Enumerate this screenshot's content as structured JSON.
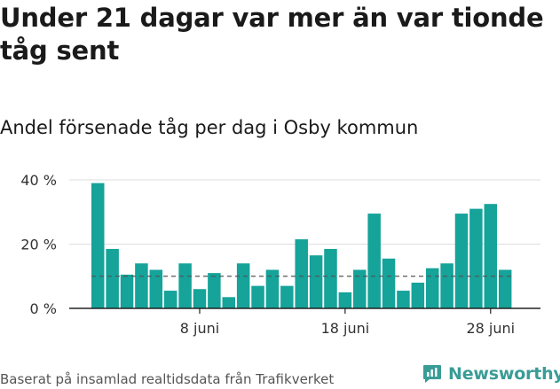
{
  "title": "Under 21 dagar var mer än var tionde tåg sent",
  "subtitle": "Andel försenade tåg per dag i Osby kommun",
  "footer": "Baserat på insamlad realtidsdata från Trafikverket",
  "brand": {
    "name": "Newsworthy",
    "icon": "newsworthy-logo-icon"
  },
  "colors": {
    "bar": "#15a39a",
    "grid": "#dddddd",
    "axis": "#222222",
    "reference": "#555555",
    "brand": "#3a9c96"
  },
  "chart_data": {
    "type": "bar",
    "x": [
      "1 juni",
      "2 juni",
      "3 juni",
      "4 juni",
      "5 juni",
      "6 juni",
      "7 juni",
      "8 juni",
      "9 juni",
      "10 juni",
      "11 juni",
      "12 juni",
      "13 juni",
      "14 juni",
      "15 juni",
      "16 juni",
      "17 juni",
      "18 juni",
      "19 juni",
      "20 juni",
      "21 juni",
      "22 juni",
      "23 juni",
      "24 juni",
      "25 juni",
      "26 juni",
      "27 juni",
      "28 juni",
      "29 juni"
    ],
    "values": [
      39,
      18.5,
      10.5,
      14,
      12,
      5.5,
      14,
      6,
      11,
      3.5,
      14,
      7,
      12,
      7,
      21.5,
      16.5,
      18.5,
      5,
      12,
      29.5,
      15.5,
      5.5,
      8,
      12.5,
      14,
      29.5,
      31,
      32.5,
      12
    ],
    "ylim": [
      0,
      40
    ],
    "yticks": [
      0,
      20,
      40
    ],
    "ytick_labels": [
      "0 %",
      "20 %",
      "40 %"
    ],
    "xticks": [
      {
        "x": "8 juni",
        "label": "8 juni"
      },
      {
        "x": "18 juni",
        "label": "18 juni"
      },
      {
        "x": "28 juni",
        "label": "28 juni"
      }
    ],
    "reference_line": 10,
    "grid": true
  }
}
